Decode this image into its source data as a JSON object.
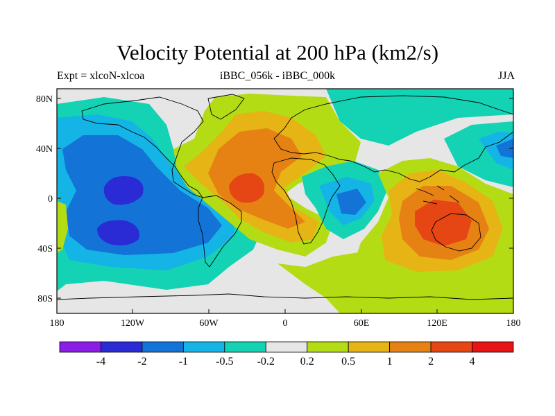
{
  "title": "Velocity Potential at 200 hPa (km2/s)",
  "subtitle_left": "Expt = xlcoN-xlcoa",
  "subtitle_center": "iBBC_056k - iBBC_000k",
  "subtitle_right": "JJA",
  "map": {
    "lat_ticks": [
      "80N",
      "40N",
      "0",
      "40S",
      "80S"
    ],
    "lon_ticks": [
      "180",
      "120W",
      "60W",
      "0",
      "60E",
      "120E",
      "180"
    ]
  },
  "colorbar": {
    "colors": [
      "#8a1ee6",
      "#2b2bd6",
      "#1473d6",
      "#14b4e6",
      "#14d2b4",
      "#e6e6e6",
      "#b4dc14",
      "#e6b414",
      "#e68214",
      "#e64614",
      "#e61414"
    ],
    "labels": [
      "-4",
      "-2",
      "-1",
      "-0.5",
      "-0.2",
      "0.2",
      "0.5",
      "1",
      "2",
      "4"
    ]
  }
}
